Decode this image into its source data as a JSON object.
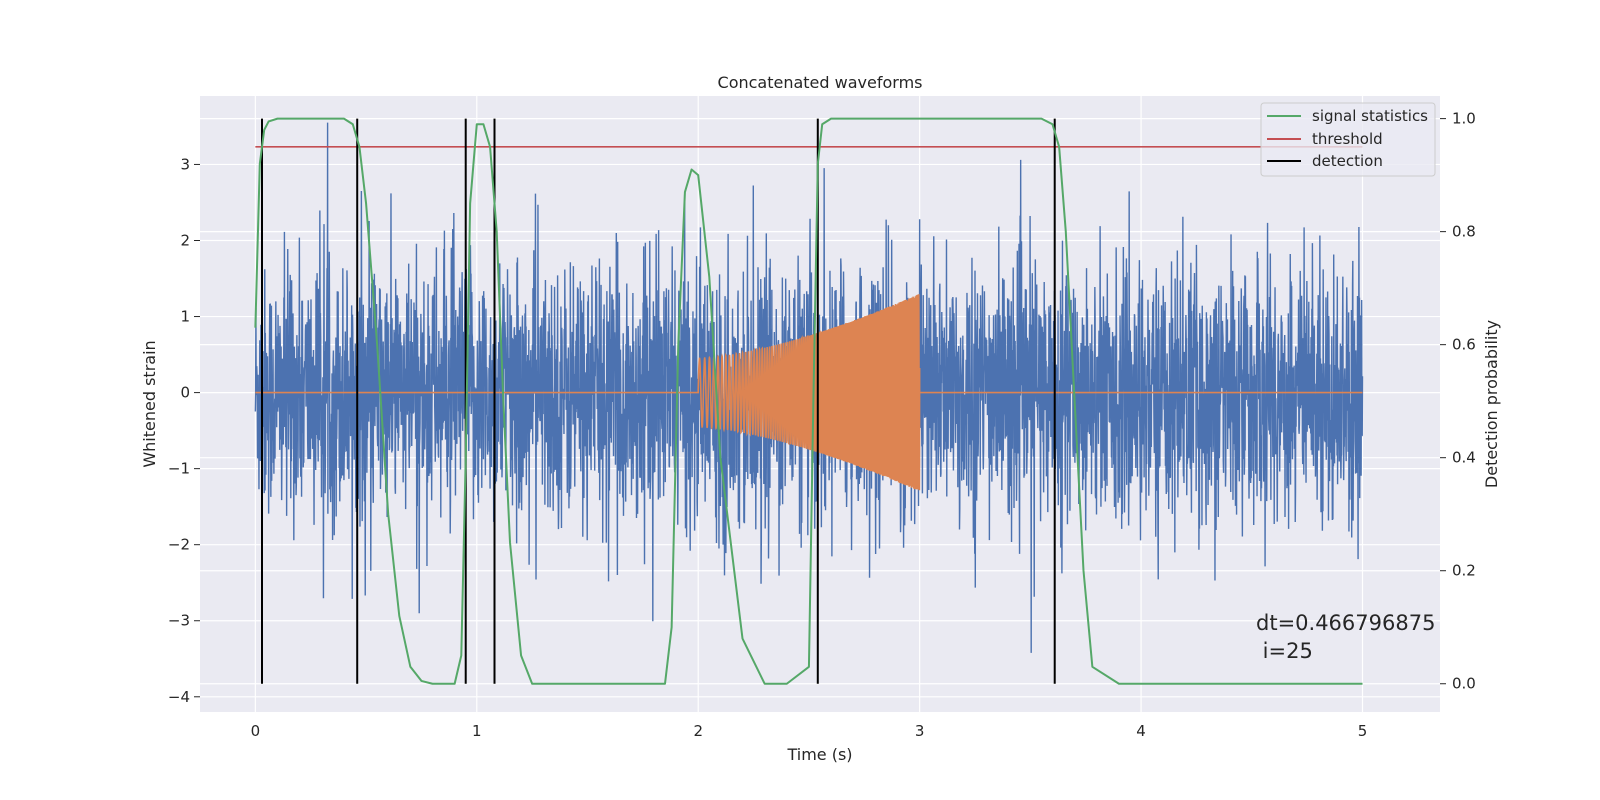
{
  "chart_data": {
    "type": "line",
    "title": "Concatenated waveforms",
    "xlabel": "Time (s)",
    "ylabel_left": "Whitened strain",
    "ylabel_right": "Detection probability",
    "xlim": [
      -0.25,
      5.35
    ],
    "ylim_left": [
      -4.2,
      3.9
    ],
    "ylim_right": [
      -0.05,
      1.04
    ],
    "xticks": [
      0,
      1,
      2,
      3,
      4,
      5
    ],
    "yticks_left": [
      -4,
      -3,
      -2,
      -1,
      0,
      1,
      2,
      3
    ],
    "yticks_right": [
      0.0,
      0.2,
      0.4,
      0.6,
      0.8,
      1.0
    ],
    "grid": true,
    "legend_position": "top-right",
    "colors": {
      "strain": "#4c72b0",
      "injection": "#dd8452",
      "signal_statistics": "#55a868",
      "threshold": "#c44e52",
      "detection": "#000000",
      "background": "#eaeaf2",
      "grid": "#ffffff"
    },
    "series": [
      {
        "name": "signal statistics",
        "axis": "right",
        "x": [
          0.0,
          0.02,
          0.04,
          0.06,
          0.1,
          0.2,
          0.3,
          0.4,
          0.44,
          0.47,
          0.5,
          0.55,
          0.6,
          0.65,
          0.7,
          0.75,
          0.8,
          0.9,
          0.93,
          0.95,
          0.97,
          1.0,
          1.03,
          1.06,
          1.09,
          1.12,
          1.15,
          1.2,
          1.25,
          1.3,
          1.5,
          1.7,
          1.85,
          1.88,
          1.91,
          1.94,
          1.97,
          2.0,
          2.05,
          2.1,
          2.2,
          2.3,
          2.35,
          2.4,
          2.5,
          2.52,
          2.54,
          2.56,
          2.6,
          2.8,
          3.0,
          3.2,
          3.4,
          3.55,
          3.6,
          3.63,
          3.66,
          3.7,
          3.74,
          3.78,
          3.9,
          4.2,
          4.5,
          5.0
        ],
        "values": [
          0.63,
          0.92,
          0.98,
          0.995,
          1.0,
          1.0,
          1.0,
          1.0,
          0.99,
          0.95,
          0.85,
          0.6,
          0.3,
          0.12,
          0.03,
          0.005,
          0.0,
          0.0,
          0.05,
          0.4,
          0.85,
          0.99,
          0.99,
          0.95,
          0.8,
          0.5,
          0.25,
          0.05,
          0.0,
          0.0,
          0.0,
          0.0,
          0.0,
          0.1,
          0.6,
          0.87,
          0.91,
          0.9,
          0.72,
          0.4,
          0.08,
          0.0,
          0.0,
          0.0,
          0.03,
          0.5,
          0.92,
          0.99,
          1.0,
          1.0,
          1.0,
          1.0,
          1.0,
          1.0,
          0.99,
          0.95,
          0.8,
          0.5,
          0.2,
          0.03,
          0.0,
          0.0,
          0.0,
          0.0
        ]
      },
      {
        "name": "threshold",
        "axis": "right",
        "x": [
          0.0,
          5.0
        ],
        "values": [
          0.95,
          0.95
        ]
      },
      {
        "name": "detection",
        "axis": "right",
        "type": "vlines",
        "x": [
          0.03,
          0.46,
          0.95,
          1.08,
          2.54,
          3.61
        ],
        "ymin": 0.0,
        "ymax": 1.0
      },
      {
        "name": "",
        "axis": "left",
        "type": "noise",
        "x_range": [
          0.0,
          5.0
        ],
        "typical_envelope": 1.6,
        "peak_min": -3.85,
        "peak_max": 3.55
      },
      {
        "name": "",
        "axis": "left",
        "type": "chirp",
        "x_range": [
          2.0,
          3.0
        ],
        "amplitude_start": 0.45,
        "amplitude_end": 1.3,
        "baseline_range": [
          0.0,
          5.0
        ]
      }
    ],
    "legend": [
      "signal statistics",
      "threshold",
      "detection"
    ],
    "annotation": {
      "line1": "dt=0.466796875",
      "line2": " i=25"
    }
  }
}
